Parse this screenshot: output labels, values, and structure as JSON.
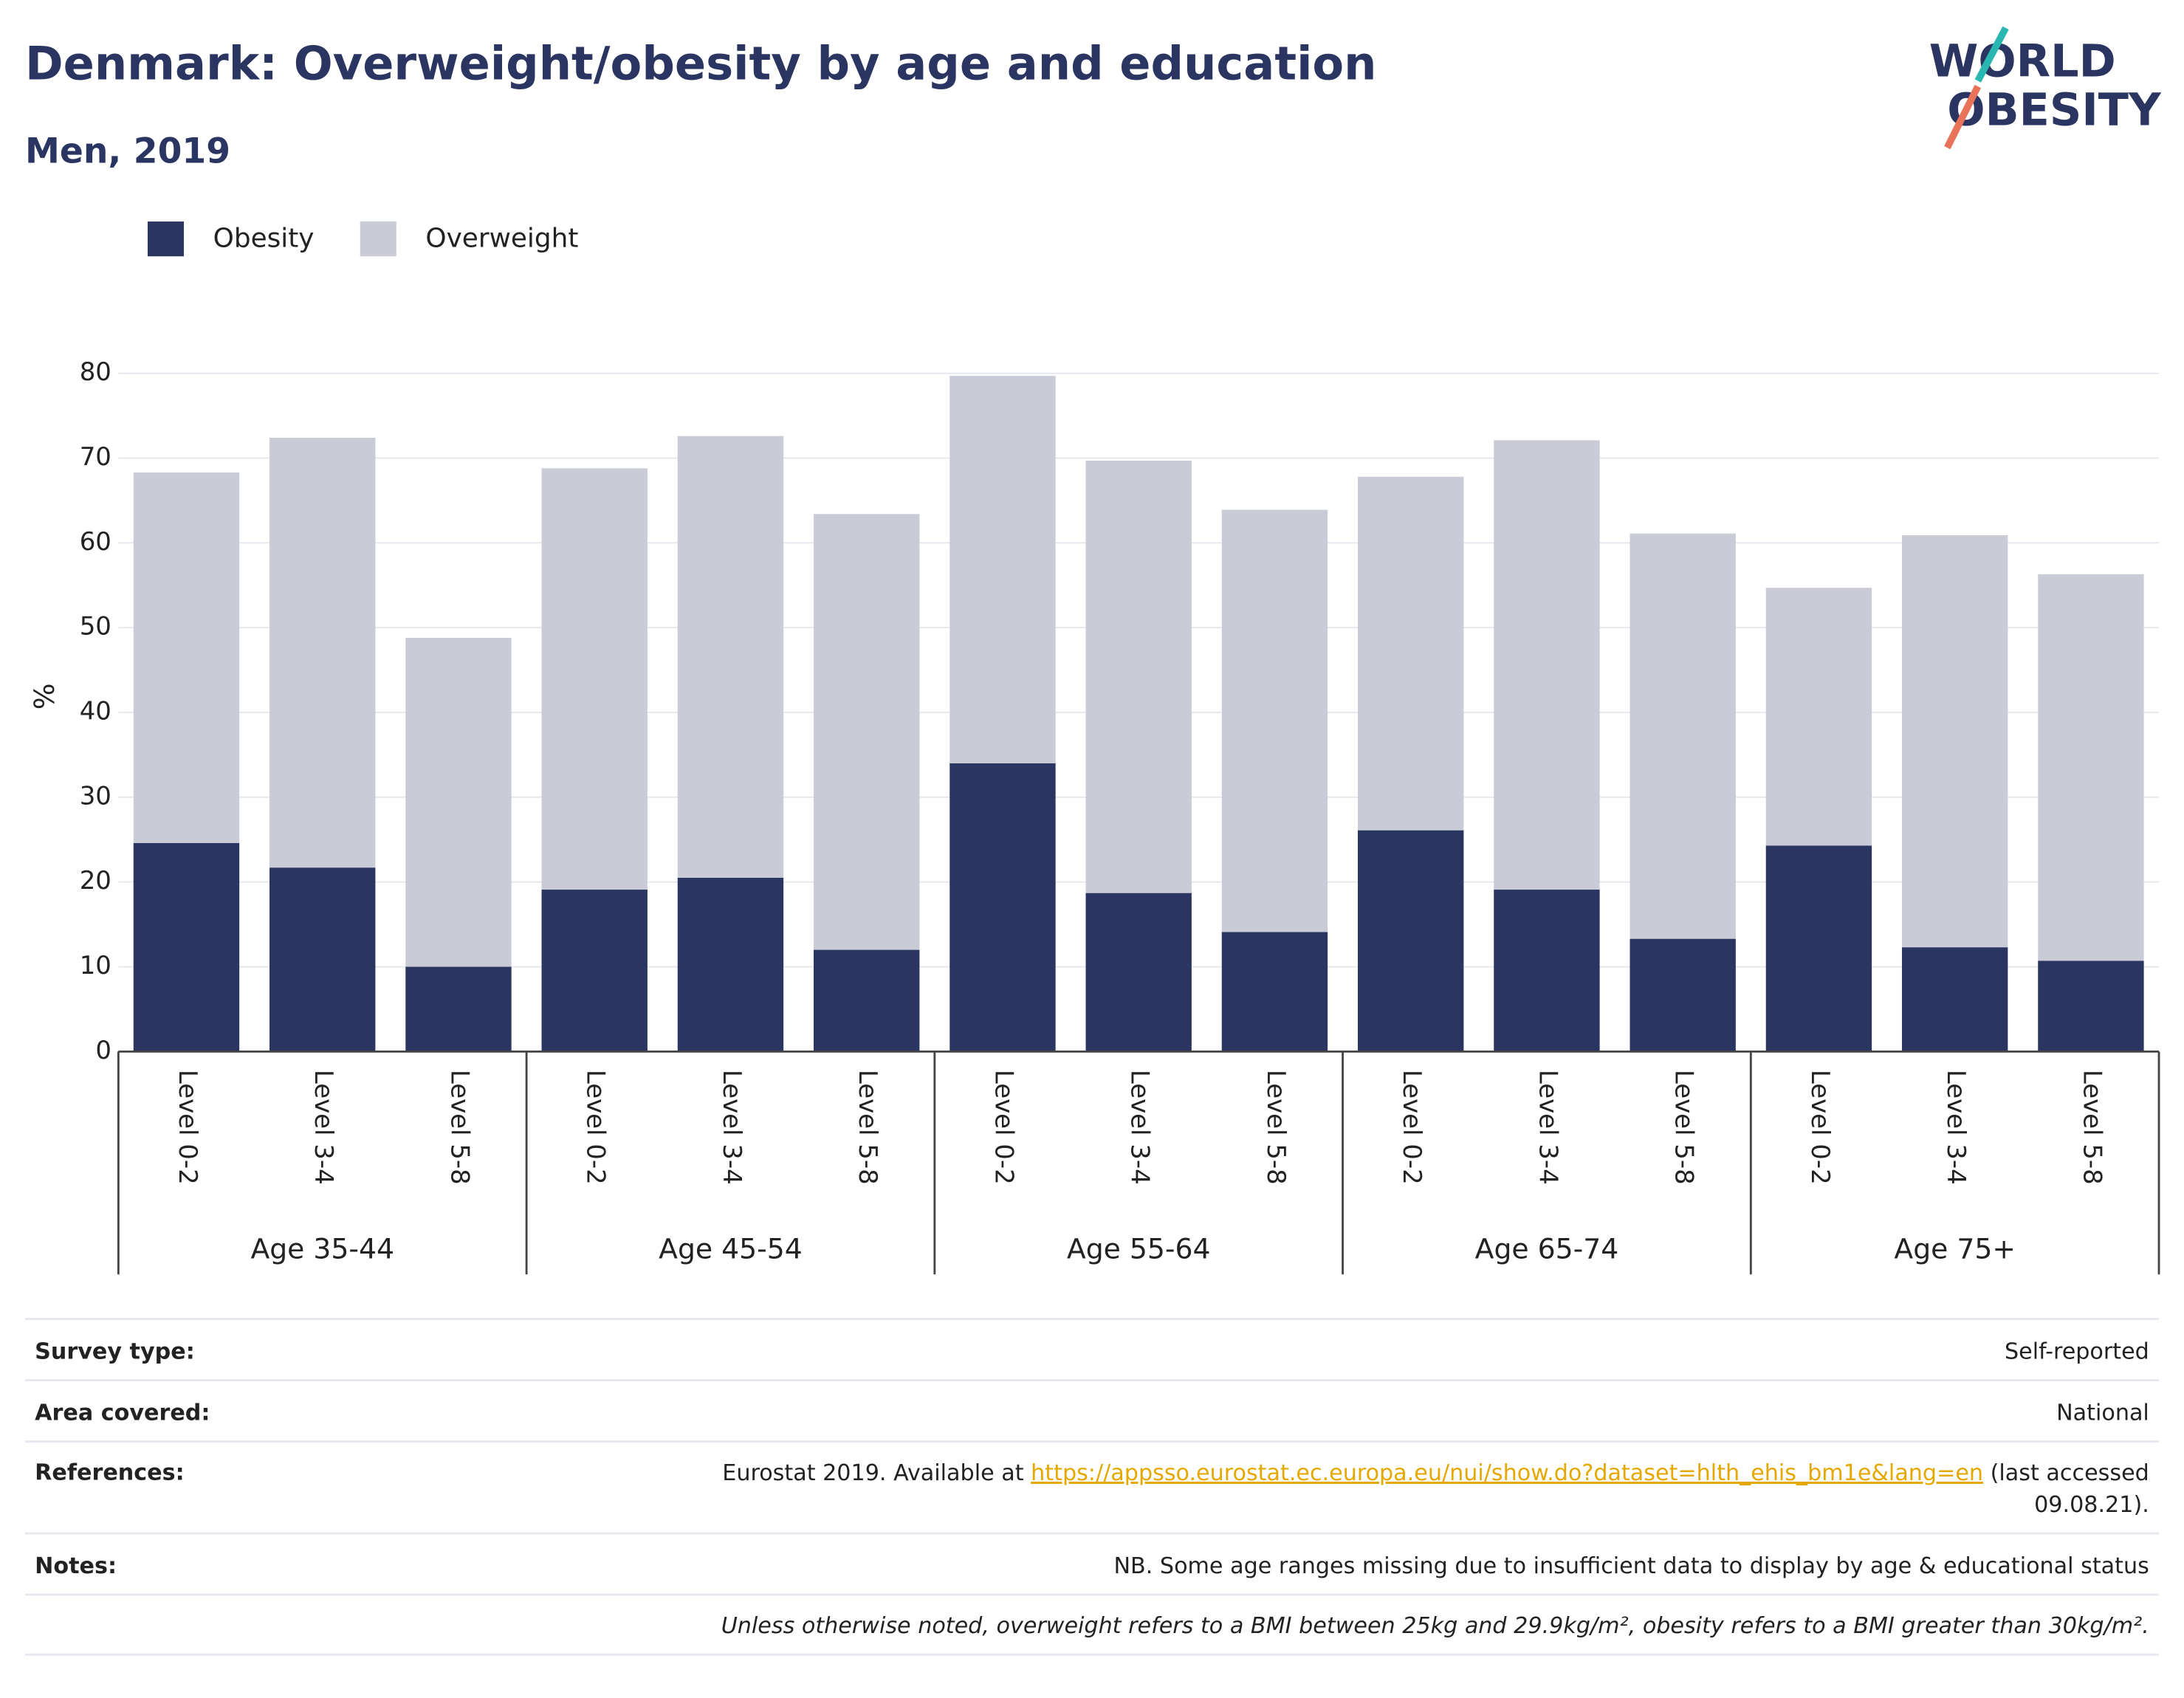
{
  "chart_data": {
    "type": "stacked_bar",
    "title": "Denmark: Overweight/obesity by age and education",
    "subtitle": "Men, 2019",
    "y_label": "%",
    "categories": [
      "Level 0-2",
      "Level 3-4",
      "Level 5-8",
      "Level 0-2",
      "Level 3-4",
      "Level 5-8",
      "Level 0-2",
      "Level 3-4",
      "Level 5-8",
      "Level 0-2",
      "Level 3-4",
      "Level 5-8",
      "Level 0-2",
      "Level 3-4",
      "Level 5-8"
    ],
    "groups": [
      "Age 35-44",
      "Age 45-54",
      "Age 55-64",
      "Age 65-74",
      "Age 75+"
    ],
    "series": [
      {
        "name": "Obesity",
        "color": "#2b3561",
        "values": [
          24.6,
          21.7,
          10.0,
          19.1,
          20.5,
          12.0,
          34.0,
          18.7,
          14.1,
          26.1,
          19.1,
          13.3,
          24.3,
          12.3,
          10.7
        ]
      },
      {
        "name": "Overweight",
        "color": "#c9cbd6",
        "values": [
          43.7,
          50.7,
          38.8,
          49.7,
          52.1,
          51.4,
          45.7,
          51.0,
          49.8,
          41.7,
          53.0,
          47.8,
          30.4,
          48.6,
          45.6
        ]
      }
    ],
    "ylim": [
      0,
      80
    ],
    "yticks": [
      0,
      10,
      20,
      30,
      40,
      50,
      60,
      70,
      80
    ],
    "grid": true
  },
  "logo": {
    "line1": "WORLD",
    "line2": "OBESITY"
  },
  "info": {
    "rows": [
      {
        "label": "Survey type:",
        "value": "Self-reported"
      },
      {
        "label": "Area covered:",
        "value": "National"
      }
    ],
    "references": {
      "label": "References:",
      "before": "Eurostat 2019. Available at ",
      "url": "https://appsso.eurostat.ec.europa.eu/nui/show.do?dataset=hlth_ehis_bm1e&lang=en",
      "after": " (last accessed",
      "line2": "09.08.21)."
    },
    "notes": {
      "label": "Notes:",
      "value": "NB. Some age ranges missing due to insufficient data to display by age & educational status"
    },
    "footnote": "Unless otherwise noted, overweight refers to a BMI between 25kg and 29.9kg/m², obesity refers to a BMI greater than 30kg/m²."
  }
}
